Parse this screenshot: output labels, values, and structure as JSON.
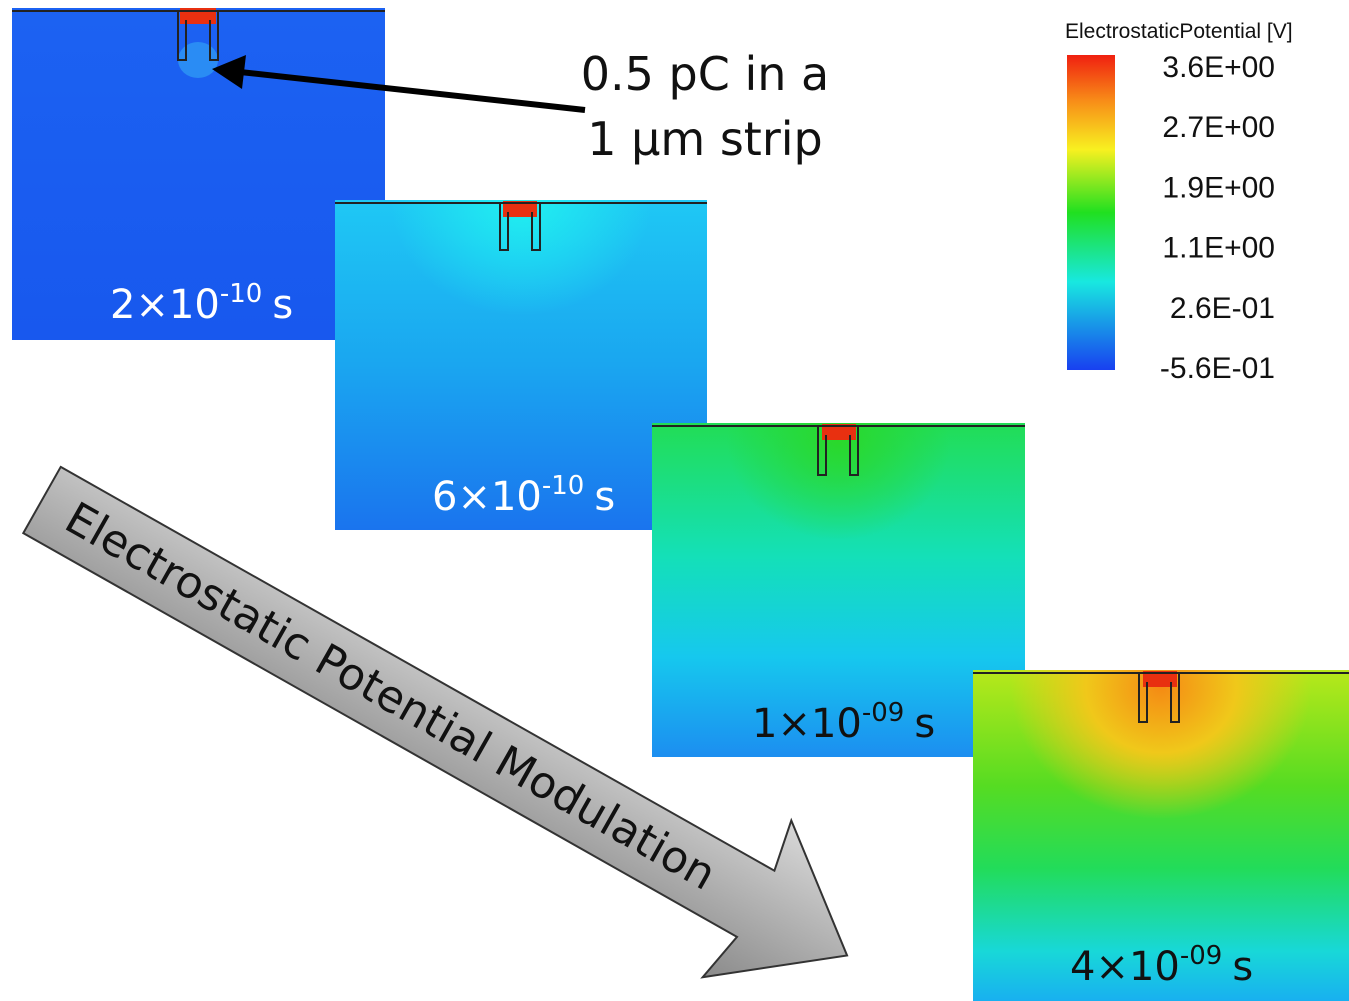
{
  "legend": {
    "title": "ElectrostaticPotential [V]",
    "ticks": [
      "3.6E+00",
      "2.7E+00",
      "1.9E+00",
      "1.1E+00",
      "2.6E-01",
      "-5.6E-01"
    ]
  },
  "annotation": {
    "line1": "0.5 pC in a",
    "line2": "1 µm strip"
  },
  "panels": [
    {
      "base": "2×10",
      "exponent": "-10",
      "unit": "s"
    },
    {
      "base": "6×10",
      "exponent": "-10",
      "unit": "s"
    },
    {
      "base": "1×10",
      "exponent": "-09",
      "unit": "s"
    },
    {
      "base": "4×10",
      "exponent": "-09",
      "unit": "s"
    }
  ],
  "arrow_label": "Electrostatic Potential Modulation"
}
